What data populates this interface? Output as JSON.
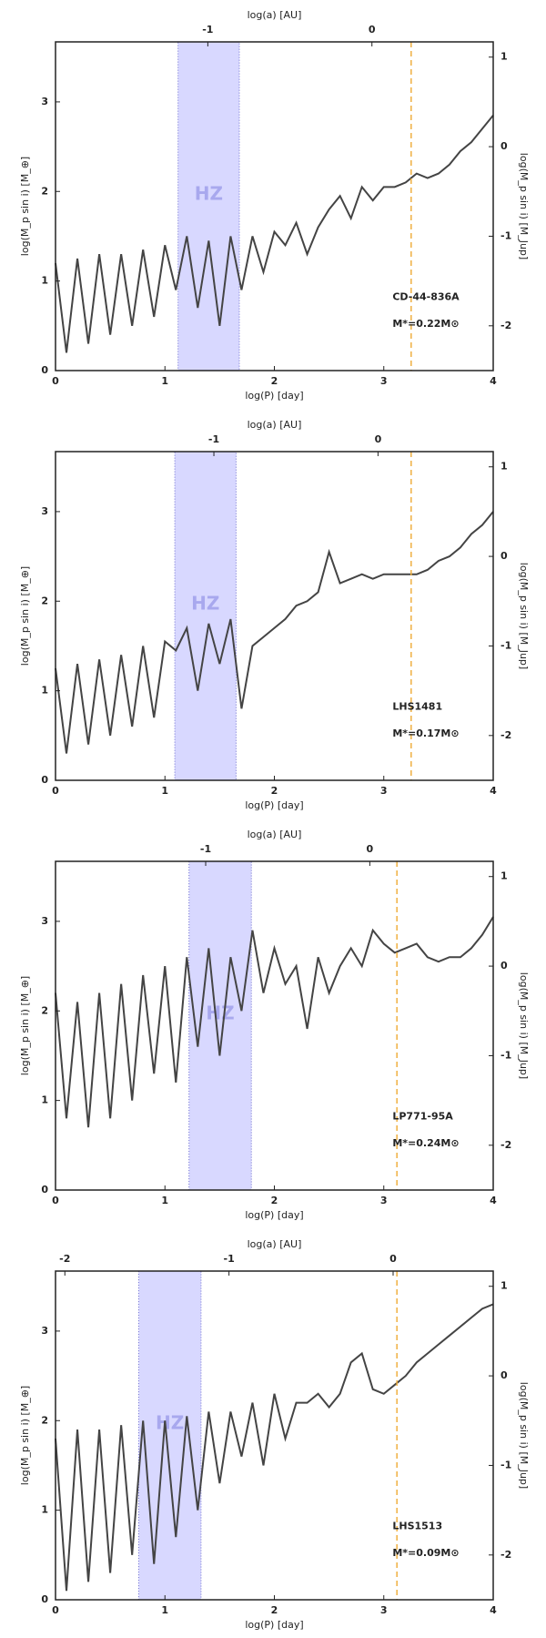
{
  "chart_data": [
    {
      "type": "line",
      "star": "CD-44-836A",
      "mass_label": "M*=0.22M⊙",
      "xlabel": "log(P) [day]",
      "ylabel": "log(M_p sin i) [M_⊕]",
      "y2label": "log(M_p sin i) [M_Jup]",
      "x2label": "log(a) [AU]",
      "x": [
        0,
        0.1,
        0.2,
        0.3,
        0.4,
        0.5,
        0.6,
        0.7,
        0.8,
        0.9,
        1.0,
        1.1,
        1.2,
        1.3,
        1.4,
        1.5,
        1.6,
        1.7,
        1.8,
        1.9,
        2.0,
        2.1,
        2.2,
        2.3,
        2.4,
        2.5,
        2.6,
        2.7,
        2.8,
        2.9,
        3.0,
        3.1,
        3.2,
        3.3,
        3.4,
        3.5,
        3.6,
        3.7,
        3.8,
        3.9,
        4.0
      ],
      "values": [
        1.2,
        0.2,
        1.25,
        0.3,
        1.3,
        0.4,
        1.3,
        0.5,
        1.35,
        0.6,
        1.4,
        0.9,
        1.5,
        0.7,
        1.45,
        0.5,
        1.5,
        0.9,
        1.5,
        1.1,
        1.55,
        1.4,
        1.65,
        1.3,
        1.6,
        1.8,
        1.95,
        1.7,
        2.05,
        1.9,
        2.05,
        2.05,
        2.1,
        2.2,
        2.15,
        2.2,
        2.3,
        2.45,
        2.55,
        2.7,
        2.85
      ],
      "color": "#444444",
      "xlim": [
        0,
        4
      ],
      "xticks": [
        0,
        1,
        2,
        3,
        4
      ],
      "ylim": [
        0,
        3.67
      ],
      "yticks": [
        0,
        1,
        2,
        3
      ],
      "y2lim": [
        -2.5,
        1.17
      ],
      "y2ticks": [
        -2,
        -1,
        0,
        1
      ],
      "x2lim": [
        -1.928,
        0.739
      ],
      "x2ticks": [
        -1,
        0
      ],
      "hz": [
        1.12,
        1.68
      ],
      "hz_label": "HZ",
      "hz_color": "#c8c8ff",
      "snow_line": 3.25,
      "snow_line_color": "#f0b040"
    },
    {
      "type": "line",
      "star": "LHS1481",
      "mass_label": "M*=0.17M⊙",
      "xlabel": "log(P) [day]",
      "ylabel": "log(M_p sin i) [M_⊕]",
      "y2label": "log(M_p sin i) [M_Jup]",
      "x2label": "log(a) [AU]",
      "x": [
        0,
        0.1,
        0.2,
        0.3,
        0.4,
        0.5,
        0.6,
        0.7,
        0.8,
        0.9,
        1.0,
        1.1,
        1.2,
        1.3,
        1.4,
        1.5,
        1.6,
        1.7,
        1.8,
        1.9,
        2.0,
        2.1,
        2.2,
        2.3,
        2.4,
        2.5,
        2.6,
        2.7,
        2.8,
        2.9,
        3.0,
        3.1,
        3.2,
        3.3,
        3.4,
        3.5,
        3.6,
        3.7,
        3.8,
        3.9,
        4.0
      ],
      "values": [
        1.25,
        0.3,
        1.3,
        0.4,
        1.35,
        0.5,
        1.4,
        0.6,
        1.5,
        0.7,
        1.55,
        1.45,
        1.7,
        1.0,
        1.75,
        1.3,
        1.8,
        0.8,
        1.5,
        1.6,
        1.7,
        1.8,
        1.95,
        2.0,
        2.1,
        2.55,
        2.2,
        2.25,
        2.3,
        2.25,
        2.3,
        2.3,
        2.3,
        2.3,
        2.35,
        2.45,
        2.5,
        2.6,
        2.75,
        2.85,
        3.0
      ],
      "color": "#444444",
      "xlim": [
        0,
        4
      ],
      "xticks": [
        0,
        1,
        2,
        3,
        4
      ],
      "ylim": [
        0,
        3.67
      ],
      "yticks": [
        0,
        1,
        2,
        3
      ],
      "y2lim": [
        -2.5,
        1.17
      ],
      "y2ticks": [
        -2,
        -1,
        0,
        1
      ],
      "x2lim": [
        -1.965,
        0.702
      ],
      "x2ticks": [
        -1,
        0
      ],
      "hz": [
        1.09,
        1.65
      ],
      "hz_label": "HZ",
      "hz_color": "#c8c8ff",
      "snow_line": 3.25,
      "snow_line_color": "#f0b040"
    },
    {
      "type": "line",
      "star": "LP771-95A",
      "mass_label": "M*=0.24M⊙",
      "xlabel": "log(P) [day]",
      "ylabel": "log(M_p sin i) [M_⊕]",
      "y2label": "log(M_p sin i) [M_Jup]",
      "x2label": "log(a) [AU]",
      "x": [
        0,
        0.1,
        0.2,
        0.3,
        0.4,
        0.5,
        0.6,
        0.7,
        0.8,
        0.9,
        1.0,
        1.1,
        1.2,
        1.3,
        1.4,
        1.5,
        1.6,
        1.7,
        1.8,
        1.9,
        2.0,
        2.1,
        2.2,
        2.3,
        2.4,
        2.5,
        2.6,
        2.7,
        2.8,
        2.9,
        3.0,
        3.1,
        3.2,
        3.3,
        3.4,
        3.5,
        3.6,
        3.7,
        3.8,
        3.9,
        4.0
      ],
      "values": [
        2.2,
        0.8,
        2.1,
        0.7,
        2.2,
        0.8,
        2.3,
        1.0,
        2.4,
        1.3,
        2.5,
        1.2,
        2.6,
        1.6,
        2.7,
        1.5,
        2.6,
        2.0,
        2.9,
        2.2,
        2.7,
        2.3,
        2.5,
        1.8,
        2.6,
        2.2,
        2.5,
        2.7,
        2.5,
        2.9,
        2.75,
        2.65,
        2.7,
        2.75,
        2.6,
        2.55,
        2.6,
        2.6,
        2.7,
        2.85,
        3.05
      ],
      "color": "#444444",
      "xlim": [
        0,
        4
      ],
      "xticks": [
        0,
        1,
        2,
        3,
        4
      ],
      "ylim": [
        0,
        3.67
      ],
      "yticks": [
        0,
        1,
        2,
        3
      ],
      "y2lim": [
        -2.5,
        1.17
      ],
      "y2ticks": [
        -2,
        -1,
        0,
        1
      ],
      "x2lim": [
        -1.915,
        0.752
      ],
      "x2ticks": [
        -1,
        0
      ],
      "hz": [
        1.22,
        1.79
      ],
      "hz_label": "HZ",
      "hz_color": "#c8c8ff",
      "snow_line": 3.12,
      "snow_line_color": "#f0b040"
    },
    {
      "type": "line",
      "star": "LHS1513",
      "mass_label": "M*=0.09M⊙",
      "xlabel": "log(P) [day]",
      "ylabel": "log(M_p sin i) [M_⊕]",
      "y2label": "log(M_p sin i) [M_Jup]",
      "x2label": "log(a) [AU]",
      "x": [
        0,
        0.1,
        0.2,
        0.3,
        0.4,
        0.5,
        0.6,
        0.7,
        0.8,
        0.9,
        1.0,
        1.1,
        1.2,
        1.3,
        1.4,
        1.5,
        1.6,
        1.7,
        1.8,
        1.9,
        2.0,
        2.1,
        2.2,
        2.3,
        2.4,
        2.5,
        2.6,
        2.7,
        2.8,
        2.9,
        3.0,
        3.1,
        3.2,
        3.3,
        3.4,
        3.5,
        3.6,
        3.7,
        3.8,
        3.9,
        4.0
      ],
      "values": [
        1.8,
        0.1,
        1.9,
        0.2,
        1.9,
        0.3,
        1.95,
        0.5,
        2.0,
        0.4,
        2.0,
        0.7,
        2.05,
        1.0,
        2.1,
        1.3,
        2.1,
        1.6,
        2.2,
        1.5,
        2.3,
        1.8,
        2.2,
        2.2,
        2.3,
        2.15,
        2.3,
        2.65,
        2.75,
        2.35,
        2.3,
        2.4,
        2.5,
        2.65,
        2.75,
        2.85,
        2.95,
        3.05,
        3.15,
        3.25,
        3.3
      ],
      "color": "#444444",
      "xlim": [
        0,
        4
      ],
      "xticks": [
        0,
        1,
        2,
        3,
        4
      ],
      "ylim": [
        0,
        3.67
      ],
      "yticks": [
        0,
        1,
        2,
        3
      ],
      "y2lim": [
        -2.5,
        1.17
      ],
      "y2ticks": [
        -2,
        -1,
        0,
        1
      ],
      "x2lim": [
        -2.057,
        0.61
      ],
      "x2ticks": [
        -2,
        -1,
        0
      ],
      "hz": [
        0.76,
        1.33
      ],
      "hz_label": "HZ",
      "hz_color": "#c8c8ff",
      "snow_line": 3.12,
      "snow_line_color": "#f0b040"
    }
  ]
}
